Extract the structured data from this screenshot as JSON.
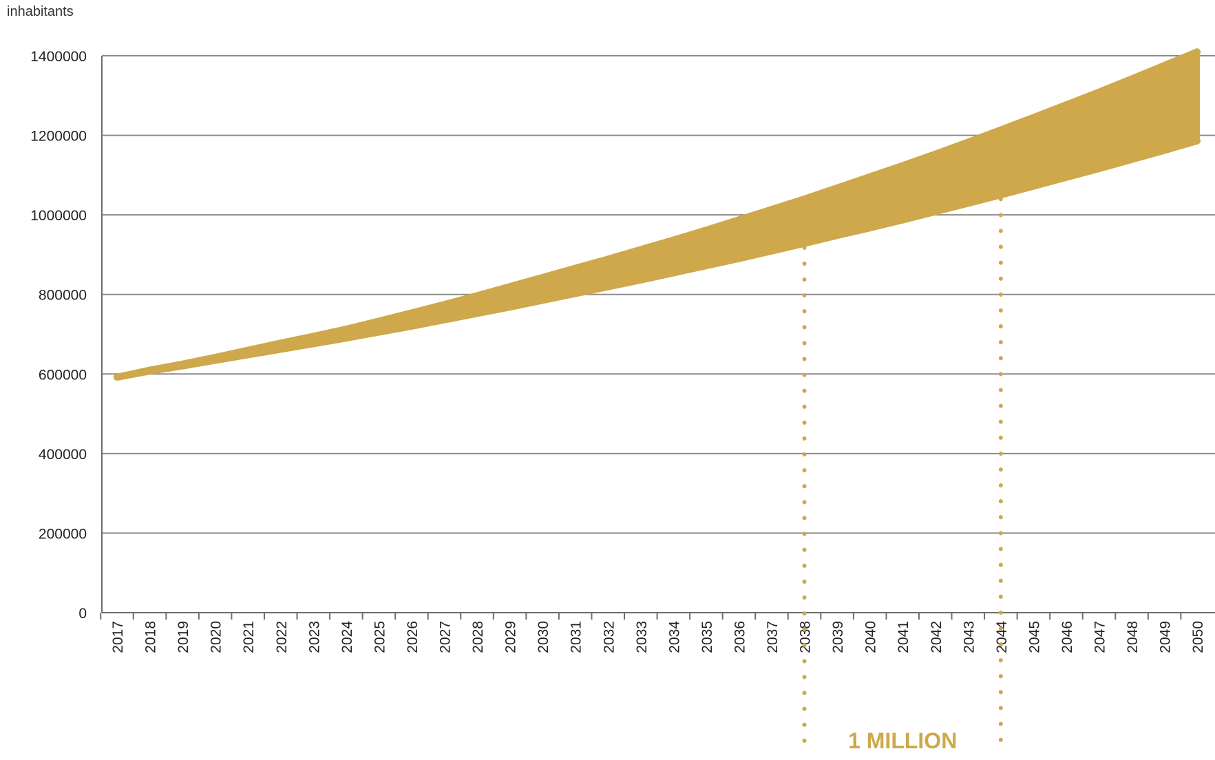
{
  "chart_data": {
    "type": "area",
    "ylabel": "inhabitants",
    "ylim": [
      0,
      1400000
    ],
    "yticks": [
      "0",
      "200000",
      "400000",
      "600000",
      "800000",
      "1000000",
      "1200000",
      "1400000"
    ],
    "x": [
      "2017",
      "2018",
      "2019",
      "2020",
      "2021",
      "2022",
      "2023",
      "2024",
      "2025",
      "2026",
      "2027",
      "2028",
      "2029",
      "2030",
      "2031",
      "2032",
      "2033",
      "2034",
      "2035",
      "2036",
      "2037",
      "2038",
      "2039",
      "2040",
      "2041",
      "2042",
      "2043",
      "2044",
      "2045",
      "2046",
      "2047",
      "2048",
      "2049",
      "2050"
    ],
    "series": [
      {
        "role": "upper",
        "values": [
          592000,
          610000,
          625000,
          642000,
          660000,
          678000,
          695000,
          713000,
          733000,
          754000,
          775000,
          797000,
          820000,
          843000,
          866000,
          889000,
          913000,
          937000,
          962000,
          988000,
          1014000,
          1040000,
          1068000,
          1096000,
          1124000,
          1153000,
          1183000,
          1214000,
          1245000,
          1277000,
          1309000,
          1342000,
          1376000,
          1410000
        ]
      },
      {
        "role": "lower",
        "values": [
          592000,
          607000,
          620000,
          634000,
          648000,
          662000,
          676000,
          690000,
          705000,
          720000,
          736000,
          752000,
          768000,
          785000,
          802000,
          819000,
          836000,
          854000,
          872000,
          890000,
          909000,
          928000,
          948000,
          967000,
          987000,
          1008000,
          1029000,
          1050000,
          1072000,
          1094000,
          1116000,
          1139000,
          1162000,
          1186000
        ]
      }
    ],
    "color": "#cea84a",
    "grid": true,
    "annotations": [
      {
        "text": "1 MILLION",
        "x_start": "2038",
        "x_end": "2044"
      }
    ]
  }
}
